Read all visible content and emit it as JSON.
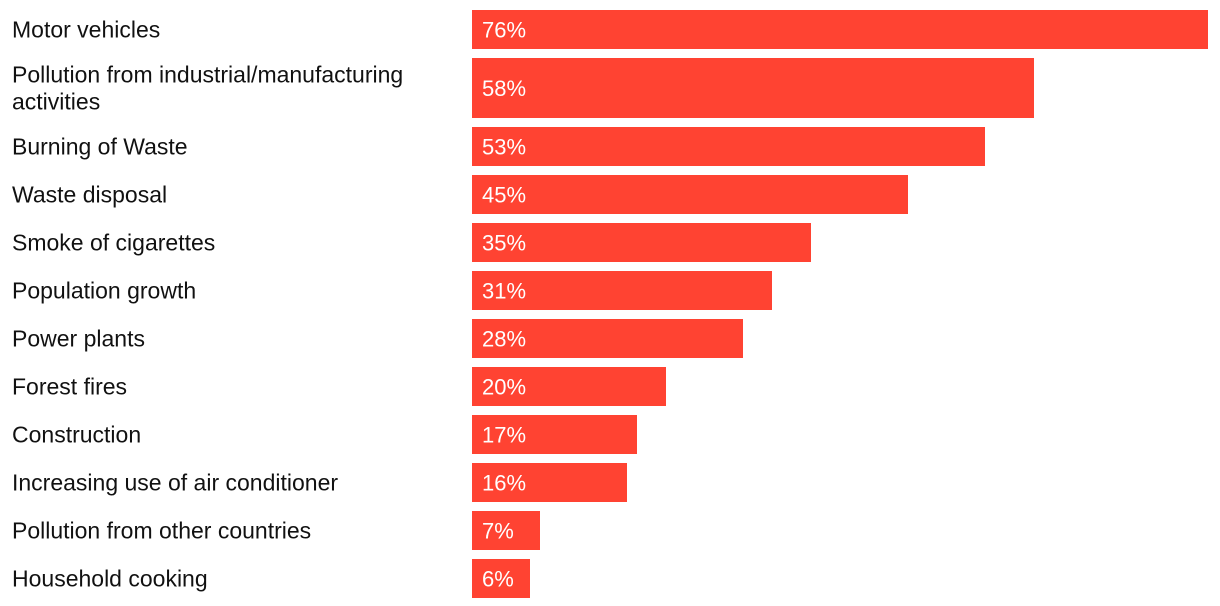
{
  "chart_data": {
    "type": "bar",
    "orientation": "horizontal",
    "categories": [
      "Motor vehicles",
      "Pollution from industrial/manufacturing activities",
      "Burning of Waste",
      "Waste disposal",
      "Smoke of cigarettes",
      "Population growth",
      "Power plants",
      "Forest fires",
      "Construction",
      "Increasing use of air conditioner",
      "Pollution from other countries",
      "Household cooking"
    ],
    "category_lines": [
      [
        "Motor vehicles"
      ],
      [
        "Pollution from industrial/manufacturing",
        "activities"
      ],
      [
        "Burning of Waste"
      ],
      [
        "Waste disposal"
      ],
      [
        "Smoke of cigarettes"
      ],
      [
        "Population growth"
      ],
      [
        "Power plants"
      ],
      [
        "Forest fires"
      ],
      [
        "Construction"
      ],
      [
        "Increasing use of air conditioner"
      ],
      [
        "Pollution from other countries"
      ],
      [
        "Household cooking"
      ]
    ],
    "values": [
      76,
      58,
      53,
      45,
      35,
      31,
      28,
      20,
      17,
      16,
      7,
      6
    ],
    "value_labels": [
      "76%",
      "58%",
      "53%",
      "45%",
      "35%",
      "31%",
      "28%",
      "20%",
      "17%",
      "16%",
      "7%",
      "6%"
    ],
    "unit": "%",
    "xlim": [
      0,
      76
    ],
    "title": "",
    "xlabel": "",
    "ylabel": "",
    "grid": false,
    "bar_color": "#ff4332",
    "label_color": "#ffffff",
    "text_color": "#111111"
  }
}
